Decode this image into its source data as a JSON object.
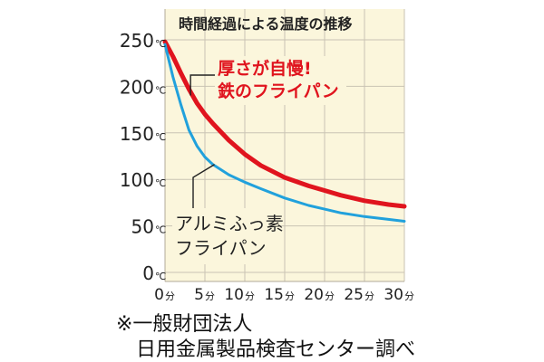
{
  "chart_data": {
    "type": "line",
    "title": "時間経過による温度の推移",
    "x_unit": "分",
    "y_unit": "℃",
    "xlim": [
      0,
      30
    ],
    "ylim": [
      0,
      250
    ],
    "x_ticks": [
      0,
      5,
      10,
      15,
      20,
      25,
      30
    ],
    "y_ticks": [
      0,
      50,
      100,
      150,
      200,
      250
    ],
    "grid": true,
    "series": [
      {
        "name_lines": [
          "厚さが自慢!",
          "鉄のフライパン"
        ],
        "color": "#e0141e",
        "x": [
          0,
          1,
          2,
          3,
          4,
          5,
          6,
          8,
          10,
          12,
          15,
          18,
          20,
          22,
          25,
          28,
          30
        ],
        "y": [
          248,
          232,
          214,
          197,
          182,
          170,
          160,
          142,
          127,
          115,
          102,
          93,
          88,
          83,
          77,
          73,
          71
        ]
      },
      {
        "name_lines": [
          "アルミふっ素",
          "フライパン"
        ],
        "color": "#21a1dc",
        "x": [
          0,
          1,
          2,
          3,
          4,
          5,
          6,
          8,
          10,
          12,
          15,
          18,
          20,
          22,
          25,
          28,
          30
        ],
        "y": [
          245,
          210,
          180,
          153,
          136,
          124,
          116,
          105,
          97,
          90,
          80,
          72,
          68,
          64,
          60,
          57,
          55
        ]
      }
    ]
  },
  "source": {
    "line1": "※一般財団法人",
    "line2": "日用金属製品検査センター調べ"
  }
}
